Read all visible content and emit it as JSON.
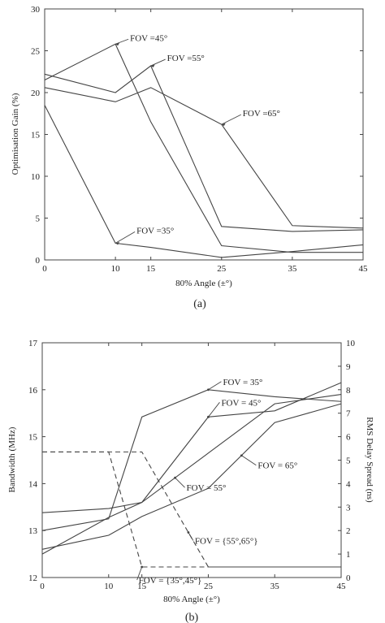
{
  "chart_data": [
    {
      "type": "line",
      "panel_caption": "(a)",
      "xlabel": "80% Angle (±°)",
      "ylabel": "Optimisation Gain (%)",
      "xlim": [
        0,
        45
      ],
      "ylim": [
        0,
        30
      ],
      "xticks": [
        "0",
        "10",
        "15",
        "25",
        "35",
        "45"
      ],
      "yticks": [
        "0",
        "5",
        "10",
        "15",
        "20",
        "25",
        "30"
      ],
      "grid": false,
      "legend": "none",
      "x": [
        0,
        10,
        15,
        25,
        35,
        45
      ],
      "series": [
        {
          "label": "FOV =35°",
          "values": [
            18.5,
            2.0,
            1.5,
            0.3,
            1.0,
            1.8
          ],
          "annotate_at": 10
        },
        {
          "label": "FOV =45°",
          "values": [
            21.5,
            25.8,
            16.5,
            1.7,
            0.9,
            0.9
          ],
          "annotate_at": 10
        },
        {
          "label": "FOV =55°",
          "values": [
            22.2,
            20.0,
            23.2,
            4.0,
            3.4,
            3.6
          ],
          "annotate_at": 15
        },
        {
          "label": "FOV =65°",
          "values": [
            20.6,
            18.9,
            20.6,
            16.2,
            4.1,
            3.8
          ],
          "annotate_at": 25
        }
      ]
    },
    {
      "type": "line",
      "panel_caption": "(b)",
      "xlabel": "80% Angle (±°)",
      "ylabel_left": "Bandwidth (MHz)",
      "ylabel_right": "RMS Delay Spread (ns)",
      "xlim": [
        0,
        45
      ],
      "ylim_left": [
        12,
        17
      ],
      "ylim_right": [
        0,
        10
      ],
      "xticks": [
        "0",
        "10",
        "15",
        "25",
        "35",
        "45"
      ],
      "yticks_left": [
        "12",
        "13",
        "14",
        "15",
        "16",
        "17"
      ],
      "yticks_right": [
        "0",
        "1",
        "2",
        "3",
        "4",
        "5",
        "6",
        "7",
        "8",
        "9",
        "10"
      ],
      "grid": false,
      "legend": "none",
      "x": [
        0,
        10,
        15,
        25,
        35,
        45
      ],
      "series": [
        {
          "label": "FOV = 35°",
          "axis": "left",
          "style": "solid",
          "values": [
            13.0,
            13.25,
            15.42,
            16.0,
            15.85,
            15.75
          ],
          "annotate_at": 25
        },
        {
          "label": "FOV = 45°",
          "axis": "left",
          "style": "solid",
          "values": [
            12.5,
            13.28,
            13.6,
            15.42,
            15.55,
            16.15
          ],
          "annotate_at": 25
        },
        {
          "label": "FOV = 55°",
          "axis": "left",
          "style": "solid",
          "values": [
            13.38,
            13.47,
            13.6,
            14.65,
            15.7,
            15.9
          ],
          "annotate_at": 20
        },
        {
          "label": "FOV = 65°",
          "axis": "left",
          "style": "solid",
          "values": [
            12.6,
            12.9,
            13.3,
            13.9,
            15.3,
            15.7
          ],
          "annotate_at": 30
        },
        {
          "label": "FOV = {35°,45°}",
          "axis": "right",
          "style": "dashed",
          "values": [
            5.35,
            5.35,
            0.45,
            0.45,
            0.45,
            0.45
          ],
          "annotate_at": 15
        },
        {
          "label": "FOV = {55°,65°}",
          "axis": "right",
          "style": "dashed",
          "values": [
            5.35,
            5.35,
            5.35,
            0.45,
            0.45,
            0.45
          ],
          "annotate_at": 22
        }
      ]
    }
  ]
}
